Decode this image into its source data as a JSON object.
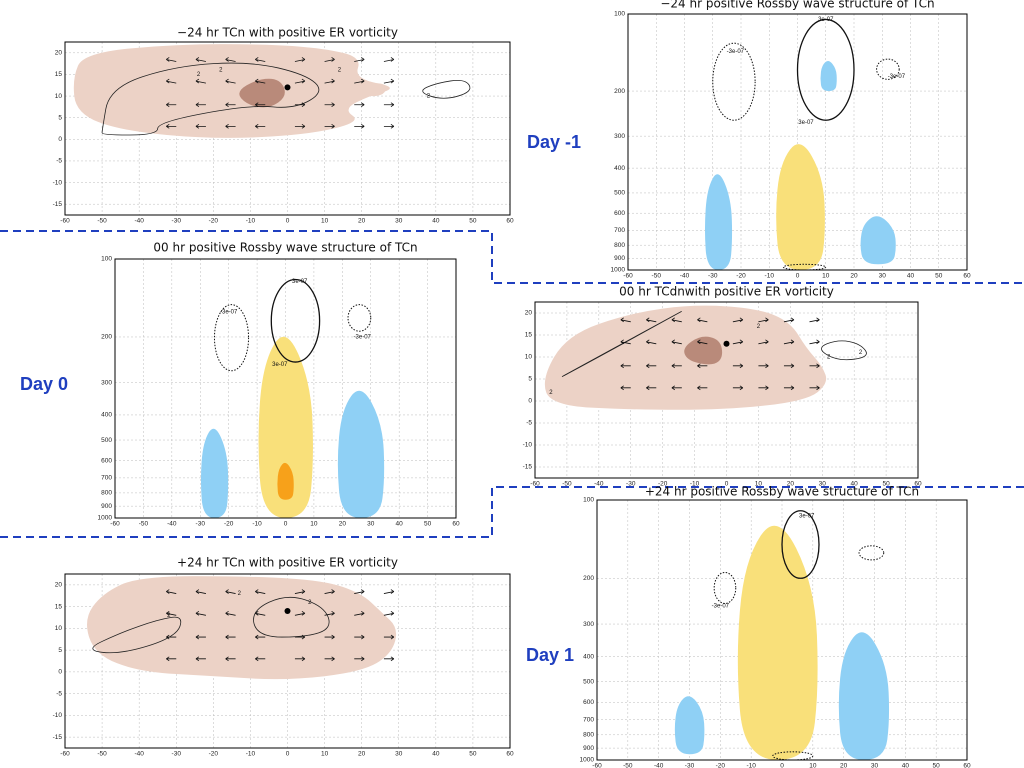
{
  "day_labels": [
    "Day -1",
    "Day 0",
    "Day 1"
  ],
  "panels": [
    {
      "title": "−24 hr TCn with positive ER vorticity",
      "xticks": [
        -60,
        -50,
        -40,
        -30,
        -20,
        -10,
        0,
        10,
        20,
        30,
        40,
        50,
        60
      ],
      "yticks": [
        20,
        15,
        10,
        5,
        0,
        -5,
        -10,
        -15
      ],
      "contour_labels": [
        "2",
        "2",
        "2",
        "2"
      ]
    },
    {
      "title": "−24 hr positive Rossby wave structure of TCn",
      "xticks": [
        -60,
        -50,
        -40,
        -30,
        -20,
        -10,
        0,
        10,
        20,
        30,
        40,
        50,
        60
      ],
      "yticks": [
        100,
        200,
        300,
        400,
        500,
        600,
        700,
        800,
        900,
        1000
      ],
      "contour_labels": [
        "-3e-07",
        "3e-07",
        "3e-07",
        "-3e-07"
      ]
    },
    {
      "title": "00 hr positive Rossby wave structure of TCn",
      "xticks": [
        -60,
        -50,
        -40,
        -30,
        -20,
        -10,
        0,
        10,
        20,
        30,
        40,
        50,
        60
      ],
      "yticks": [
        100,
        200,
        300,
        400,
        500,
        600,
        700,
        800,
        900,
        1000
      ],
      "contour_labels": [
        "-3e-07",
        "3e-07",
        "3e-07",
        "-3e-07"
      ]
    },
    {
      "title": "00 hr TCdnwith positive ER vorticity",
      "xticks": [
        -60,
        -50,
        -40,
        -30,
        -20,
        -10,
        0,
        10,
        20,
        30,
        40,
        50,
        60
      ],
      "yticks": [
        20,
        15,
        10,
        5,
        0,
        -5,
        -10,
        -15
      ],
      "contour_labels": [
        "2",
        "2",
        "2",
        "2"
      ]
    },
    {
      "title": "+24 hr TCn with positive ER vorticity",
      "xticks": [
        -60,
        -50,
        -40,
        -30,
        -20,
        -10,
        0,
        10,
        20,
        30,
        40,
        50,
        60
      ],
      "yticks": [
        20,
        15,
        10,
        5,
        0,
        -5,
        -10,
        -15
      ],
      "contour_labels": [
        "2",
        "2",
        "2"
      ]
    },
    {
      "title": "+24 hr positive Rossby wave structure of TCn",
      "xticks": [
        -60,
        -50,
        -40,
        -30,
        -20,
        -10,
        0,
        10,
        20,
        30,
        40,
        50,
        60
      ],
      "yticks": [
        100,
        200,
        300,
        400,
        500,
        600,
        700,
        800,
        900,
        1000
      ],
      "contour_labels": [
        "3e-07",
        "-3e-07"
      ]
    }
  ]
}
